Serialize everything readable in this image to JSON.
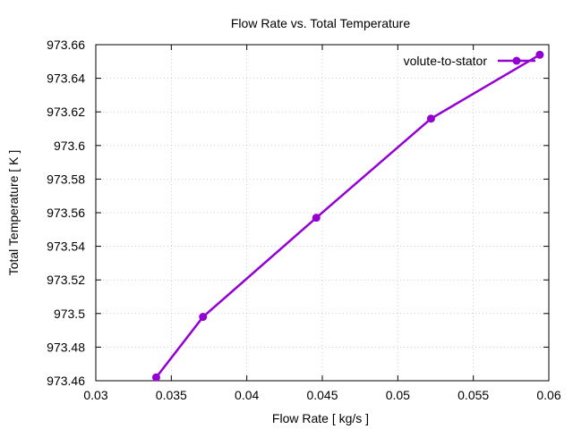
{
  "chart_data": {
    "type": "line",
    "title": "Flow Rate vs. Total Temperature",
    "xlabel": "Flow Rate [ kg/s ]",
    "ylabel": "Total Temperature [ K ]",
    "xlim": [
      0.03,
      0.06
    ],
    "ylim": [
      973.46,
      973.66
    ],
    "xticks": [
      "0.03",
      "0.035",
      "0.04",
      "0.045",
      "0.05",
      "0.055",
      "0.06"
    ],
    "yticks": [
      "973.46",
      "973.48",
      "973.5",
      "973.52",
      "973.54",
      "973.56",
      "973.58",
      "973.6",
      "973.62",
      "973.64",
      "973.66"
    ],
    "grid": true,
    "legend_position": "top-right",
    "series": [
      {
        "name": "volute-to-stator",
        "color": "#9400d3",
        "marker": "circle",
        "x": [
          0.034,
          0.0371,
          0.0446,
          0.0522,
          0.0594
        ],
        "y": [
          973.462,
          973.498,
          973.557,
          973.616,
          973.654
        ]
      }
    ]
  }
}
